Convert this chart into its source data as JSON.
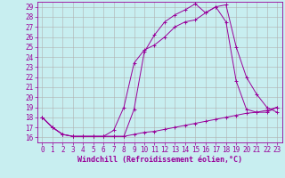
{
  "xlabel": "Windchill (Refroidissement éolien,°C)",
  "xlim": [
    -0.5,
    23.5
  ],
  "ylim": [
    15.5,
    29.5
  ],
  "yticks": [
    16,
    17,
    18,
    19,
    20,
    21,
    22,
    23,
    24,
    25,
    26,
    27,
    28,
    29
  ],
  "xticks": [
    0,
    1,
    2,
    3,
    4,
    5,
    6,
    7,
    8,
    9,
    10,
    11,
    12,
    13,
    14,
    15,
    16,
    17,
    18,
    19,
    20,
    21,
    22,
    23
  ],
  "bg_color": "#c8eef0",
  "line_color": "#990099",
  "grid_color": "#b0b0b0",
  "line1_x": [
    0,
    1,
    2,
    3,
    4,
    5,
    6,
    7,
    8,
    9,
    10,
    11,
    12,
    13,
    14,
    15,
    16,
    17,
    18,
    19,
    20,
    21,
    22,
    23
  ],
  "line1_y": [
    18.0,
    17.0,
    16.3,
    16.1,
    16.1,
    16.1,
    16.1,
    16.1,
    16.1,
    18.8,
    24.5,
    26.2,
    27.5,
    28.2,
    28.7,
    29.3,
    28.4,
    29.0,
    29.2,
    25.0,
    22.0,
    20.3,
    19.0,
    18.5
  ],
  "line2_x": [
    0,
    1,
    2,
    3,
    4,
    5,
    6,
    7,
    8,
    9,
    10,
    11,
    12,
    13,
    14,
    15,
    16,
    17,
    18,
    19,
    20,
    21,
    22,
    23
  ],
  "line2_y": [
    18.0,
    17.0,
    16.3,
    16.1,
    16.1,
    16.1,
    16.1,
    16.7,
    19.0,
    23.4,
    24.7,
    25.2,
    26.0,
    27.0,
    27.5,
    27.7,
    28.4,
    29.0,
    27.5,
    21.6,
    18.8,
    18.5,
    18.5,
    19.0
  ],
  "line3_x": [
    0,
    1,
    2,
    3,
    4,
    5,
    6,
    7,
    8,
    9,
    10,
    11,
    12,
    13,
    14,
    15,
    16,
    17,
    18,
    19,
    20,
    21,
    22,
    23
  ],
  "line3_y": [
    18.0,
    17.0,
    16.3,
    16.1,
    16.1,
    16.1,
    16.1,
    16.1,
    16.1,
    16.3,
    16.5,
    16.6,
    16.8,
    17.0,
    17.2,
    17.4,
    17.6,
    17.8,
    18.0,
    18.2,
    18.4,
    18.5,
    18.7,
    19.0
  ],
  "tick_fontsize": 5.5,
  "xlabel_fontsize": 6.0
}
